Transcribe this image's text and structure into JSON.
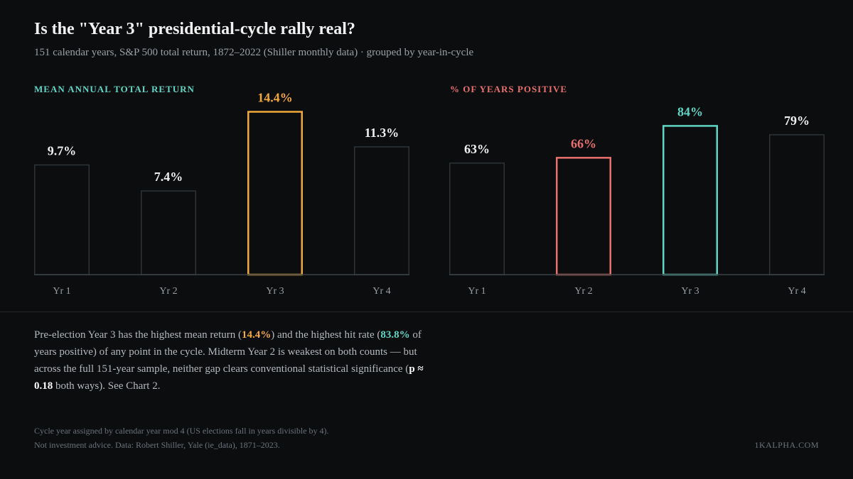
{
  "title": "Is the \"Year 3\" presidential-cycle rally real?",
  "subtitle": "151 calendar years, S&P 500 total return, 1872–2022 (Shiller monthly data) · grouped by year-in-cycle",
  "colors": {
    "background": "#0b0d0f",
    "neutral_stroke": "#2c3438",
    "baseline": "#3a4246",
    "orange": "#f2a93b",
    "teal": "#5fd6c4",
    "red": "#e8706e",
    "value_text": "#f0f0f0",
    "tick_text": "#9aa0a6"
  },
  "chart_data": [
    {
      "type": "bar",
      "title": "MEAN ANNUAL TOTAL RETURN",
      "categories": [
        "Yr 1",
        "Yr 2",
        "Yr 3",
        "Yr 4"
      ],
      "values": [
        9.7,
        7.4,
        14.4,
        11.3
      ],
      "value_labels": [
        "9.7%",
        "7.4%",
        "14.4%",
        "11.3%"
      ],
      "highlight": [
        null,
        null,
        "orange",
        null
      ],
      "ylim": [
        0,
        15.5
      ],
      "grid": false
    },
    {
      "type": "bar",
      "title": "% OF YEARS POSITIVE",
      "categories": [
        "Yr 1",
        "Yr 2",
        "Yr 3",
        "Yr 4"
      ],
      "values": [
        63,
        66,
        84,
        79
      ],
      "value_labels": [
        "63%",
        "66%",
        "84%",
        "79%"
      ],
      "highlight": [
        null,
        "red",
        "teal",
        null
      ],
      "ylim": [
        0,
        99
      ],
      "grid": false
    }
  ],
  "body": {
    "p1": "Pre-election Year 3 has the highest mean return (",
    "v1": "14.4%",
    "p2": ") and the highest hit rate (",
    "v2": "83.8%",
    "p3": " of years positive) of any point in the cycle. Midterm Year 2 is weakest on both counts — but across the full 151-year sample, neither gap clears conventional statistical significance (",
    "v3": "p ≈ 0.18",
    "p4": " both ways). See Chart 2."
  },
  "footnotes": {
    "line1": "Cycle year assigned by calendar year mod 4 (US elections fall in years divisible by 4).",
    "line2": "Not investment advice. Data: Robert Shiller, Yale (ie_data), 1871–2023."
  },
  "brand": "1KALPHA.COM"
}
